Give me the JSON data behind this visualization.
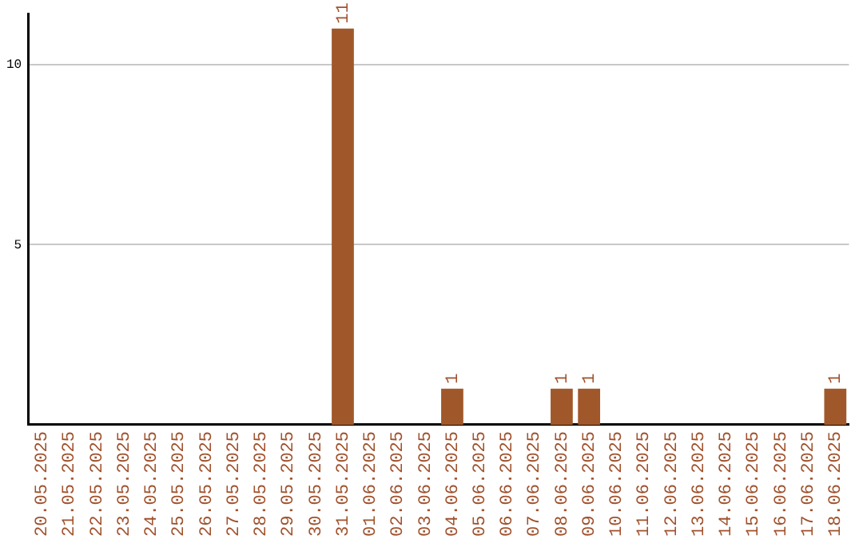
{
  "chart_data": {
    "type": "bar",
    "categories": [
      "20.05.2025",
      "21.05.2025",
      "22.05.2025",
      "23.05.2025",
      "24.05.2025",
      "25.05.2025",
      "26.05.2025",
      "27.05.2025",
      "28.05.2025",
      "29.05.2025",
      "30.05.2025",
      "31.05.2025",
      "01.06.2025",
      "02.06.2025",
      "03.06.2025",
      "04.06.2025",
      "05.06.2025",
      "06.06.2025",
      "07.06.2025",
      "08.06.2025",
      "09.06.2025",
      "10.06.2025",
      "11.06.2025",
      "12.06.2025",
      "13.06.2025",
      "14.06.2025",
      "15.06.2025",
      "16.06.2025",
      "17.06.2025",
      "18.06.2025"
    ],
    "values": [
      0,
      0,
      0,
      0,
      0,
      0,
      0,
      0,
      0,
      0,
      0,
      11,
      0,
      0,
      0,
      1,
      0,
      0,
      0,
      1,
      1,
      0,
      0,
      0,
      0,
      0,
      0,
      0,
      0,
      1
    ],
    "value_labels": [
      null,
      null,
      null,
      null,
      null,
      null,
      null,
      null,
      null,
      null,
      null,
      "11",
      null,
      null,
      null,
      "1",
      null,
      null,
      null,
      "1",
      "1",
      null,
      null,
      null,
      null,
      null,
      null,
      null,
      null,
      "1"
    ],
    "color": "#a0582a",
    "ylim": [
      0,
      11.4
    ],
    "yticks": [
      5,
      10
    ],
    "grid": "y",
    "legend": false
  }
}
